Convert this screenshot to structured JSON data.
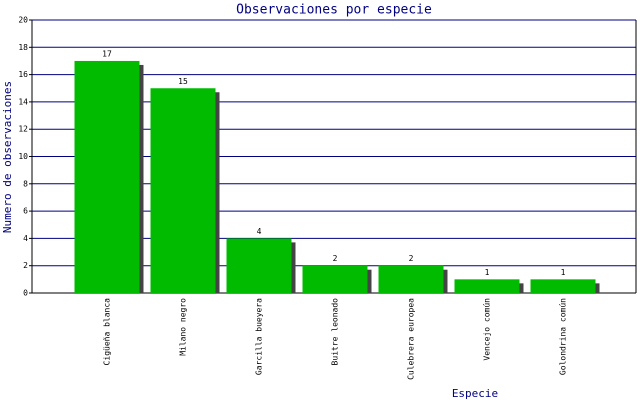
{
  "chart_data": {
    "type": "bar",
    "title": "Observaciones por especie",
    "x_label": "Especie",
    "y_label": "Numero de observaciones",
    "categories": [
      "Cigüeña blanca",
      "Milano negro",
      "Garcilla bueyera",
      "Buitre leonado",
      "Culebrera europea",
      "Vencejo común",
      "Golondrina común"
    ],
    "values": [
      17,
      15,
      4,
      2,
      2,
      1,
      1
    ],
    "color": "#00bb00",
    "ylim": [
      0,
      20
    ],
    "yticks": [
      0,
      2,
      4,
      6,
      8,
      10,
      12,
      14,
      16,
      18,
      20
    ],
    "grid": true
  }
}
